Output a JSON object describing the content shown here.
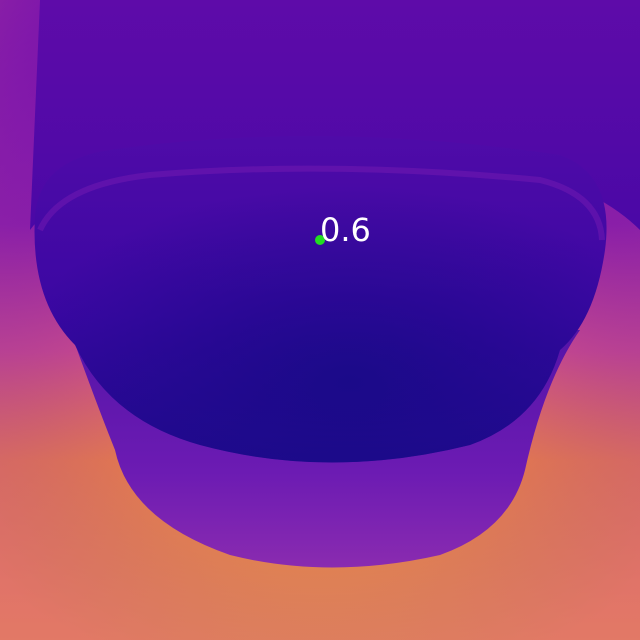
{
  "image": {
    "kind": "depth-map",
    "colormap": "plasma",
    "colors": {
      "near": "#1a0a8c",
      "mid": "#7a14b0",
      "far": "#f8a43a"
    }
  },
  "probe": {
    "value": "0.6",
    "marker_color": "#22dd22",
    "label_color": "#ffffff"
  }
}
